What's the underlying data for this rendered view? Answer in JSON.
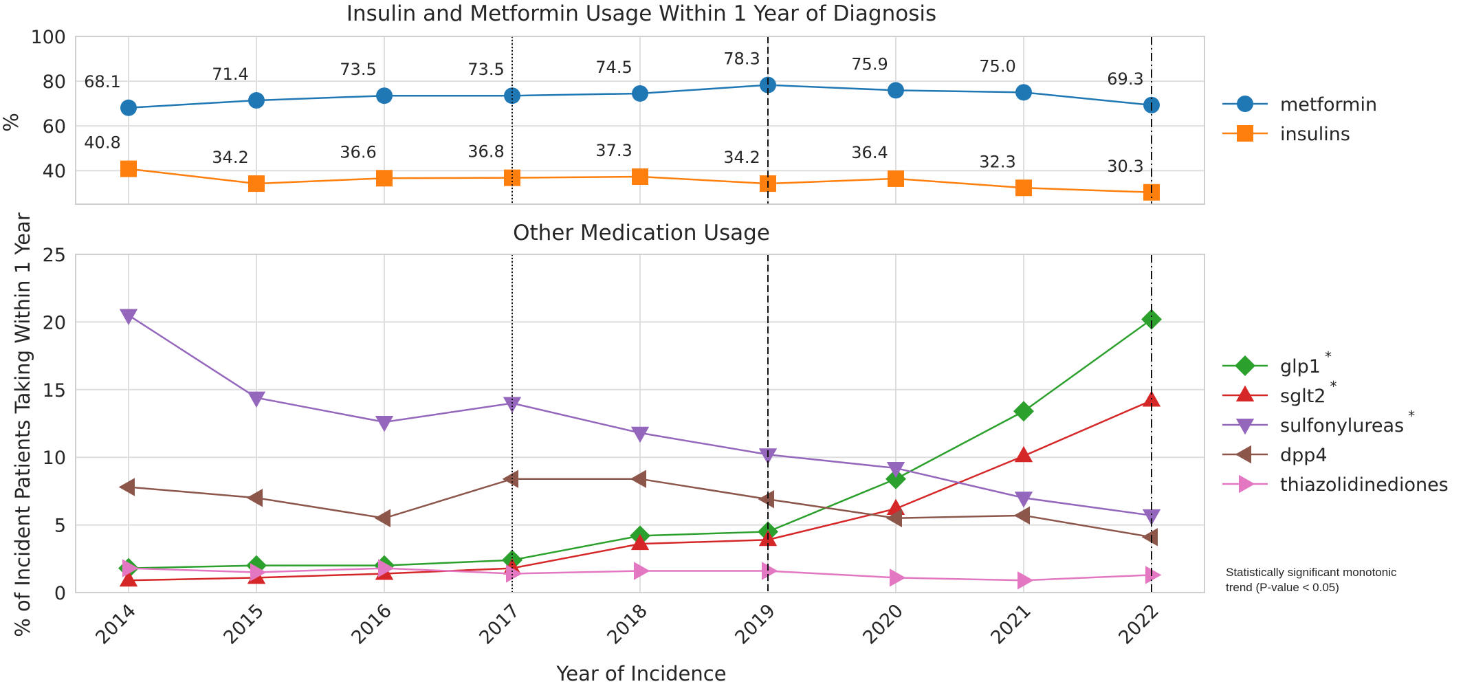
{
  "chart_data": [
    {
      "type": "line",
      "title": "Insulin and Metformin Usage Within 1 Year of Diagnosis",
      "ylabel": "%",
      "xlabel": "",
      "categories": [
        "2014",
        "2015",
        "2016",
        "2017",
        "2018",
        "2019",
        "2020",
        "2021",
        "2022"
      ],
      "ylim": [
        25,
        100
      ],
      "yticks": [
        40,
        60,
        80,
        100
      ],
      "grid": true,
      "legend_position": "right",
      "series": [
        {
          "name": "metformin",
          "marker": "circle",
          "color": "#1f77b4",
          "values": [
            68.1,
            71.4,
            73.5,
            73.5,
            74.5,
            78.3,
            75.9,
            75.0,
            69.3
          ],
          "labels": [
            "68.1",
            "71.4",
            "73.5",
            "73.5",
            "74.5",
            "78.3",
            "75.9",
            "75.0",
            "69.3"
          ]
        },
        {
          "name": "insulins",
          "marker": "square",
          "color": "#ff7f0e",
          "values": [
            40.8,
            34.2,
            36.6,
            36.8,
            37.3,
            34.2,
            36.4,
            32.3,
            30.3
          ],
          "labels": [
            "40.8",
            "34.2",
            "36.6",
            "36.8",
            "37.3",
            "34.2",
            "36.4",
            "32.3",
            "30.3"
          ]
        }
      ],
      "vertical_lines": [
        {
          "x": "2017",
          "style": "dotted"
        },
        {
          "x": "2019",
          "style": "dashed"
        },
        {
          "x": "2022",
          "style": "dashdot"
        }
      ]
    },
    {
      "type": "line",
      "title": "Other Medication Usage",
      "ylabel": "% of Incident Patients Taking Within 1 Year",
      "xlabel": "Year of Incidence",
      "categories": [
        "2014",
        "2015",
        "2016",
        "2017",
        "2018",
        "2019",
        "2020",
        "2021",
        "2022"
      ],
      "ylim": [
        0,
        25
      ],
      "yticks": [
        0,
        5,
        10,
        15,
        20,
        25
      ],
      "grid": true,
      "legend_position": "right",
      "series": [
        {
          "name": "glp1",
          "significant": true,
          "marker": "diamond",
          "color": "#2ca02c",
          "values": [
            1.8,
            2.0,
            2.0,
            2.4,
            4.2,
            4.5,
            8.4,
            13.4,
            20.2
          ]
        },
        {
          "name": "sglt2",
          "significant": true,
          "marker": "triangle-up",
          "color": "#d62728",
          "values": [
            0.9,
            1.1,
            1.4,
            1.8,
            3.6,
            3.9,
            6.2,
            10.1,
            14.2
          ]
        },
        {
          "name": "sulfonylureas",
          "significant": true,
          "marker": "triangle-down",
          "color": "#9467bd",
          "values": [
            20.5,
            14.4,
            12.6,
            14.0,
            11.8,
            10.2,
            9.2,
            7.0,
            5.7
          ]
        },
        {
          "name": "dpp4",
          "significant": false,
          "marker": "triangle-left",
          "color": "#8c564b",
          "values": [
            7.8,
            7.0,
            5.5,
            8.4,
            8.4,
            6.9,
            5.5,
            5.7,
            4.1
          ]
        },
        {
          "name": "thiazolidinediones",
          "significant": false,
          "marker": "triangle-right",
          "color": "#e377c2",
          "values": [
            1.8,
            1.5,
            1.8,
            1.4,
            1.6,
            1.6,
            1.1,
            0.9,
            1.3
          ]
        }
      ],
      "significance_marker": "*",
      "vertical_lines": [
        {
          "x": "2017",
          "style": "dotted"
        },
        {
          "x": "2019",
          "style": "dashed"
        },
        {
          "x": "2022",
          "style": "dashdot"
        }
      ]
    }
  ],
  "annotation": {
    "line1": "Statistically significant monotonic",
    "line2": "trend (P-value < 0.05)"
  }
}
